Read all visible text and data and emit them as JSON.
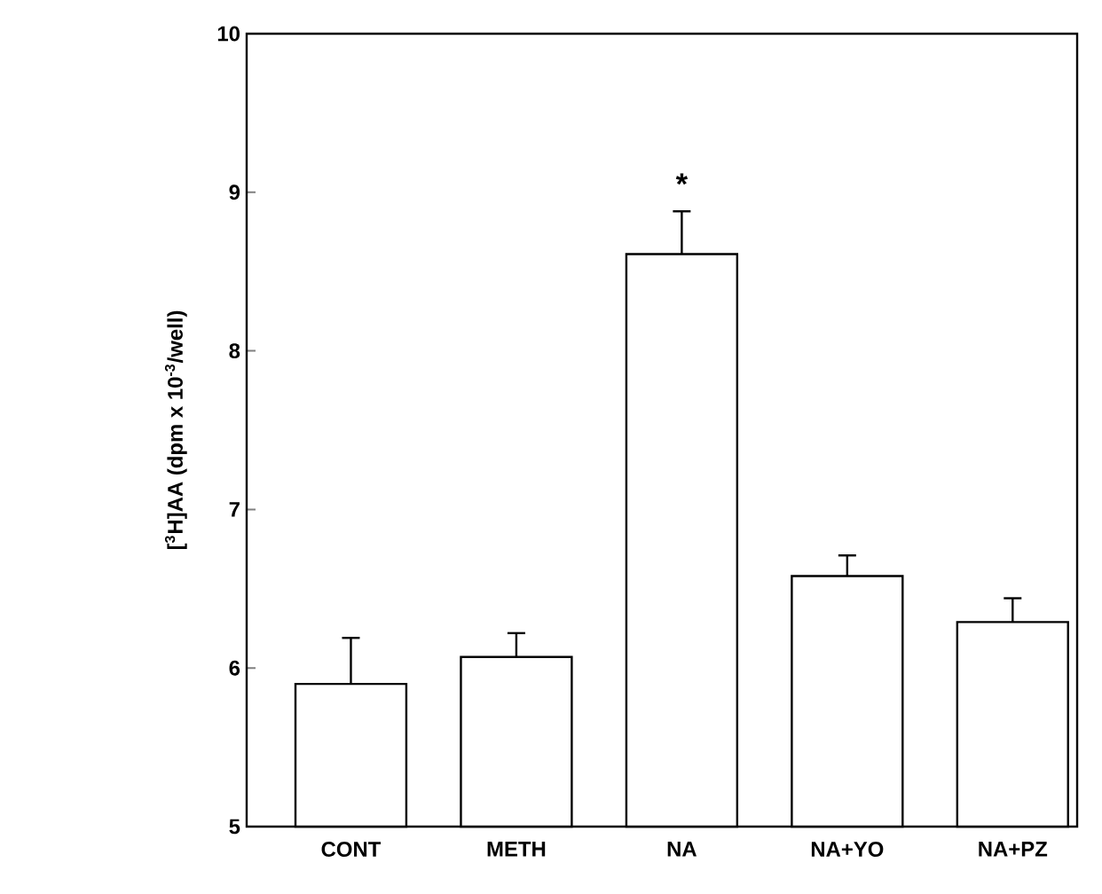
{
  "chart_data": {
    "type": "bar",
    "ylabel": "[$^{3}$H]AA (dpm x 10$^{-3}$/well)",
    "categories": [
      "CONT",
      "METH",
      "NA",
      "NA+YO",
      "NA+PZ"
    ],
    "values": [
      5.9,
      6.07,
      8.61,
      6.58,
      6.29
    ],
    "errors": [
      0.29,
      0.15,
      0.27,
      0.13,
      0.15
    ],
    "color": "#ffffff",
    "ylim": [
      5,
      10
    ],
    "yticks": [
      5,
      6,
      7,
      8,
      9,
      10
    ],
    "annotations": [
      "*"
    ]
  }
}
